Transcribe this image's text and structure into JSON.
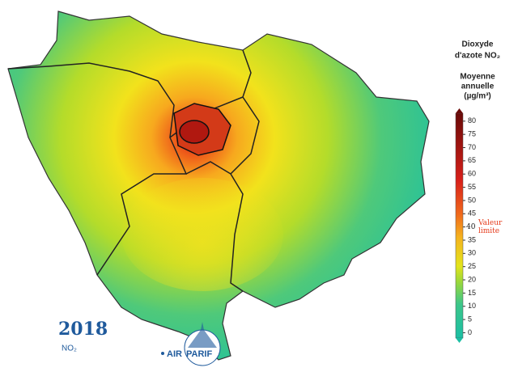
{
  "legend": {
    "title": [
      "Dioxyde",
      "d'azote NO₂"
    ],
    "subtitle": [
      "Moyenne",
      "annuelle",
      "(µg/m³)"
    ],
    "ticks": [
      0,
      5,
      10,
      15,
      20,
      25,
      30,
      35,
      40,
      45,
      50,
      55,
      60,
      65,
      70,
      75,
      80
    ],
    "range": [
      -2,
      83
    ],
    "limit": {
      "value": 40,
      "label": [
        "Valeur",
        "limite"
      ]
    }
  },
  "year": "2018",
  "pollutant": "NO₂",
  "logo": {
    "left": "AIR",
    "right": "PARIF"
  }
}
